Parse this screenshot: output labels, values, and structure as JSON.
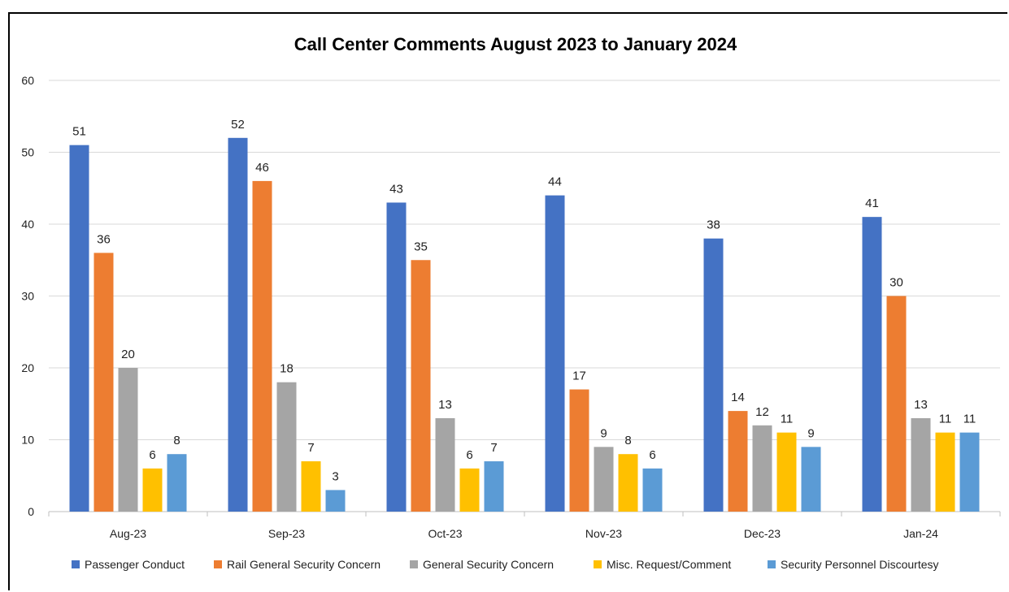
{
  "chart_data": {
    "type": "bar",
    "title": "Call Center Comments August 2023 to January 2024",
    "categories": [
      "Aug-23",
      "Sep-23",
      "Oct-23",
      "Nov-23",
      "Dec-23",
      "Jan-24"
    ],
    "series": [
      {
        "name": "Passenger Conduct",
        "color": "#4472C4",
        "values": [
          51,
          52,
          43,
          44,
          38,
          41
        ]
      },
      {
        "name": "Rail General Security Concern",
        "color": "#ED7D31",
        "values": [
          36,
          46,
          35,
          17,
          14,
          30
        ]
      },
      {
        "name": "General Security Concern",
        "color": "#A5A5A5",
        "values": [
          20,
          18,
          13,
          9,
          12,
          13
        ]
      },
      {
        "name": "Misc. Request/Comment",
        "color": "#FFC000",
        "values": [
          6,
          7,
          6,
          8,
          11,
          11
        ]
      },
      {
        "name": "Security Personnel Discourtesy",
        "color": "#5B9BD5",
        "values": [
          8,
          3,
          7,
          6,
          9,
          11
        ]
      }
    ],
    "ylim": [
      0,
      60
    ],
    "yticks": [
      0,
      10,
      20,
      30,
      40,
      50,
      60
    ],
    "xlabel": "",
    "ylabel": "",
    "grid": true,
    "legend": "bottom"
  }
}
